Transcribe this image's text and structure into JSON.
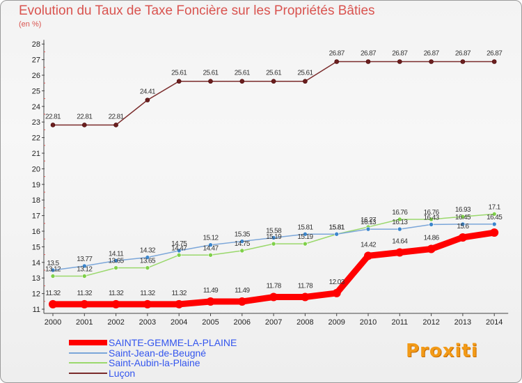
{
  "header": {
    "title": "Evolution du Taux de Taxe Foncière sur les Propriétés Bâties",
    "subtitle": "(en %)"
  },
  "logo": {
    "text": "Proxiti"
  },
  "chart_data": {
    "type": "line",
    "title": "Evolution du Taux de Taxe Foncière sur les Propriétés Bâties",
    "ylabel": "(en %)",
    "xlabel": "",
    "categories": [
      "2000",
      "2001",
      "2002",
      "2003",
      "2004",
      "2005",
      "2006",
      "2007",
      "2008",
      "2009",
      "2010",
      "2011",
      "2012",
      "2013",
      "2014"
    ],
    "ylim": [
      11,
      28
    ],
    "yticks": [
      11,
      12,
      13,
      14,
      15,
      16,
      17,
      18,
      19,
      20,
      21,
      22,
      23,
      24,
      25,
      26,
      27,
      28
    ],
    "grid": false,
    "legend_position": "bottom-left",
    "series": [
      {
        "name": "SAINTE-GEMME-LA-PLAINE",
        "color": "#ff0000",
        "values": [
          11.32,
          11.32,
          11.32,
          11.32,
          11.32,
          11.49,
          11.49,
          11.78,
          11.78,
          12.03,
          14.42,
          14.64,
          14.86,
          15.6,
          15.91
        ],
        "labels": [
          "11.32",
          "11.32",
          "11.32",
          "11.32",
          "11.32",
          "11.49",
          "11.49",
          "11.78",
          "11.78",
          "12.03",
          "14.42",
          "14.64",
          "14.86",
          "15.6",
          ""
        ]
      },
      {
        "name": "Saint-Jean-de-Beugné",
        "color": "#7ba6d9",
        "values": [
          13.5,
          13.77,
          14.11,
          14.32,
          14.75,
          15.12,
          15.35,
          15.58,
          15.81,
          15.81,
          16.13,
          16.13,
          16.43,
          16.45,
          16.45
        ],
        "labels": [
          "13.5",
          "13.77",
          "14.11",
          "14.32",
          "14.75",
          "15.12",
          "15.35",
          "15.58",
          "15.81",
          "15.81",
          "16.13",
          "16.13",
          "16.43",
          "16.45",
          "16.45"
        ]
      },
      {
        "name": "Saint-Aubin-la-Plaine",
        "color": "#9ad86c",
        "values": [
          13.12,
          13.12,
          13.65,
          13.65,
          14.47,
          14.47,
          14.75,
          15.19,
          15.19,
          15.81,
          16.27,
          16.76,
          16.76,
          16.93,
          17.1
        ],
        "labels": [
          "13.12",
          "13.12",
          "13.65",
          "13.65",
          "14.47",
          "14.47",
          "14.75",
          "15.19",
          "15.19",
          "15.81",
          "16.27",
          "16.76",
          "16.76",
          "16.93",
          "17.1"
        ]
      },
      {
        "name": "Luçon",
        "color": "#7a2b2b",
        "values": [
          22.81,
          22.81,
          22.81,
          24.41,
          25.61,
          25.61,
          25.61,
          25.61,
          25.61,
          26.87,
          26.87,
          26.87,
          26.87,
          26.87,
          26.87
        ],
        "labels": [
          "22.81",
          "22.81",
          "22.81",
          "24.41",
          "25.61",
          "25.61",
          "25.61",
          "25.61",
          "25.61",
          "26.87",
          "26.87",
          "26.87",
          "26.87",
          "26.87",
          "26.87"
        ]
      }
    ]
  }
}
